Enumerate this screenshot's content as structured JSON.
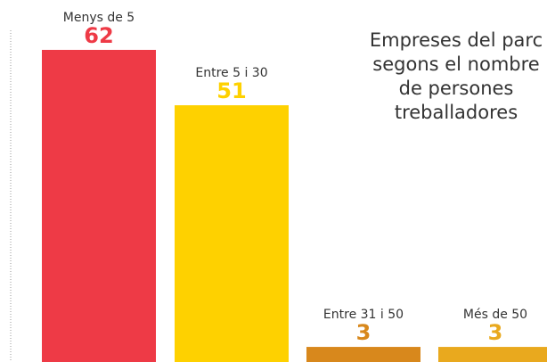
{
  "chart_data": {
    "type": "bar",
    "title": [
      "Empreses del parc",
      "segons el nombre",
      "de persones",
      "treballadores"
    ],
    "categories": [
      "Menys de 5",
      "Entre 5 i 30",
      "Entre 31 i 50",
      "Més de 50"
    ],
    "values": [
      62,
      51,
      3,
      3
    ],
    "colors": [
      "#ee3a46",
      "#fed100",
      "#d8881c",
      "#e9a91e"
    ],
    "ylim": [
      0,
      65
    ]
  }
}
